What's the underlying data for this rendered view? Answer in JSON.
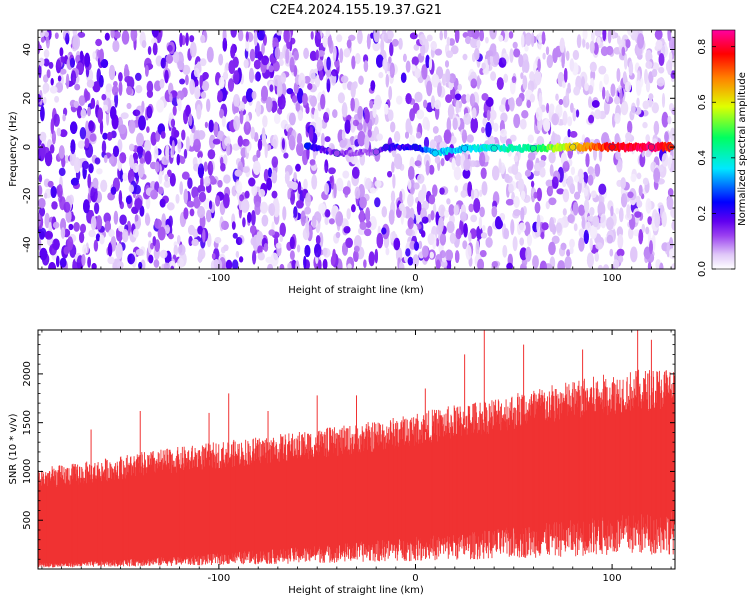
{
  "figure": {
    "title": "C2E4.2024.155.19.37.G21"
  },
  "chart_data": [
    {
      "type": "heatmap",
      "xlabel": "Height of straight line (km)",
      "ylabel": "Frequency (Hz)",
      "xlim": [
        -192,
        132
      ],
      "ylim": [
        -50,
        48
      ],
      "xticks": [
        -100,
        0,
        100
      ],
      "xtick_labels": [
        "-100",
        "0",
        "100"
      ],
      "yticks": [
        -40,
        -20,
        0,
        20,
        40
      ],
      "ytick_labels": [
        "-40",
        "-20",
        "0",
        "20",
        "40"
      ],
      "grid": false,
      "colorbar": {
        "label": "Normalized spectral amplitude",
        "range": [
          0,
          0.86
        ],
        "ticks": [
          0.0,
          0.2,
          0.4,
          0.6,
          0.8
        ],
        "tick_labels": [
          "0.0",
          "0.2",
          "0.4",
          "0.6",
          "0.8"
        ],
        "colormap": [
          "#ffffff",
          "#e0c8f8",
          "#9a40f0",
          "#6000f0",
          "#0000ff",
          "#00e8ff",
          "#00ff60",
          "#e0ff00",
          "#ff8000",
          "#ff0000",
          "#ff00a0"
        ]
      },
      "series": [
        {
          "points": [
            {
              "x": -55,
              "y": 0.5,
              "value": 0.25
            },
            {
              "x": -40,
              "y": -2.5,
              "value": 0.12
            },
            {
              "x": -20,
              "y": -2.0,
              "value": 0.12
            },
            {
              "x": -15,
              "y": 0.0,
              "value": 0.2
            },
            {
              "x": 0,
              "y": 0.0,
              "value": 0.22
            },
            {
              "x": 10,
              "y": -2.5,
              "value": 0.35
            },
            {
              "x": 25,
              "y": -0.5,
              "value": 0.35
            },
            {
              "x": 40,
              "y": -0.5,
              "value": 0.4
            },
            {
              "x": 60,
              "y": -0.5,
              "value": 0.45
            },
            {
              "x": 80,
              "y": 0.0,
              "value": 0.62
            },
            {
              "x": 100,
              "y": 0.0,
              "value": 0.78
            },
            {
              "x": 120,
              "y": 0.0,
              "value": 0.82
            },
            {
              "x": 130,
              "y": 0.0,
              "value": 0.75
            }
          ]
        }
      ]
    },
    {
      "type": "area",
      "xlabel": "Height of straight line (km)",
      "ylabel": "SNR (10 * v/v)",
      "xlim": [
        -192,
        132
      ],
      "ylim": [
        0,
        2450
      ],
      "xticks": [
        -100,
        0,
        100
      ],
      "xtick_labels": [
        "-100",
        "0",
        "100"
      ],
      "yticks": [
        500,
        1000,
        1500,
        2000
      ],
      "ytick_labels": [
        "500",
        "1000",
        "1500",
        "2000"
      ],
      "grid": false,
      "color": "#f03232",
      "series": [
        {
          "x": [
            -192,
            -170,
            -150,
            -130,
            -110,
            -90,
            -70,
            -50,
            -30,
            -10,
            10,
            30,
            50,
            70,
            90,
            110,
            132
          ],
          "lower": [
            50,
            60,
            80,
            100,
            120,
            150,
            170,
            200,
            230,
            260,
            290,
            320,
            360,
            400,
            440,
            470,
            500
          ],
          "upper": [
            1000,
            1050,
            1120,
            1180,
            1230,
            1280,
            1330,
            1380,
            1430,
            1500,
            1580,
            1660,
            1740,
            1820,
            1900,
            1960,
            2000
          ],
          "peaks": [
            {
              "x": -165,
              "y": 1430
            },
            {
              "x": -140,
              "y": 1620
            },
            {
              "x": -105,
              "y": 1600
            },
            {
              "x": -95,
              "y": 1800
            },
            {
              "x": -75,
              "y": 1620
            },
            {
              "x": -50,
              "y": 1780
            },
            {
              "x": -30,
              "y": 1780
            },
            {
              "x": 5,
              "y": 1850
            },
            {
              "x": 25,
              "y": 2200
            },
            {
              "x": 35,
              "y": 2450
            },
            {
              "x": 55,
              "y": 2300
            },
            {
              "x": 85,
              "y": 2250
            },
            {
              "x": 113,
              "y": 2450
            },
            {
              "x": 120,
              "y": 2350
            }
          ]
        }
      ]
    }
  ]
}
